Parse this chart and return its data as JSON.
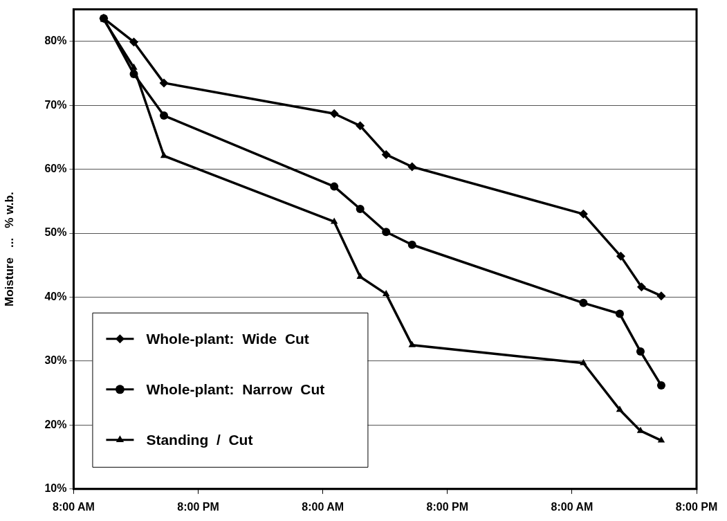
{
  "chart_data": {
    "type": "line",
    "ylabel": "Moisture   ...   % w.b.",
    "xlim": [
      "2000-01-01T08:00",
      "2000-01-03T20:00"
    ],
    "xticks": [
      {
        "value": "2000-01-01T08:00",
        "label": "8:00 AM"
      },
      {
        "value": "2000-01-01T20:00",
        "label": "8:00 PM"
      },
      {
        "value": "2000-01-02T08:00",
        "label": "8:00 AM"
      },
      {
        "value": "2000-01-02T20:00",
        "label": "8:00 PM"
      },
      {
        "value": "2000-01-03T08:00",
        "label": "8:00 AM"
      },
      {
        "value": "2000-01-03T20:00",
        "label": "8:00 PM"
      }
    ],
    "ylim": [
      10,
      85
    ],
    "yticks": [
      {
        "value": 10,
        "label": "10%"
      },
      {
        "value": 20,
        "label": "20%"
      },
      {
        "value": 30,
        "label": "30%"
      },
      {
        "value": 40,
        "label": "40%"
      },
      {
        "value": 50,
        "label": "50%"
      },
      {
        "value": 60,
        "label": "60%"
      },
      {
        "value": 70,
        "label": "70%"
      },
      {
        "value": 80,
        "label": "80%"
      }
    ],
    "grid": "y",
    "legend": "bottom left",
    "line_style": "solid",
    "series": [
      {
        "name": "Whole-plant:  Wide  Cut",
        "color": "#000000",
        "marker": "diamond",
        "x": [
          "2000-01-01T10:54",
          "2000-01-01T13:48",
          "2000-01-01T16:42",
          "2000-01-02T09:06",
          "2000-01-02T11:36",
          "2000-01-02T14:06",
          "2000-01-02T16:36",
          "2000-01-03T09:06",
          "2000-01-03T12:42",
          "2000-01-03T14:42",
          "2000-01-03T16:36"
        ],
        "values": [
          83.6,
          79.9,
          73.5,
          68.7,
          66.8,
          62.3,
          60.4,
          53.0,
          46.4,
          41.6,
          40.2
        ]
      },
      {
        "name": "Whole-plant:  Narrow  Cut",
        "color": "#000000",
        "marker": "circle",
        "x": [
          "2000-01-01T10:54",
          "2000-01-01T13:48",
          "2000-01-01T16:42",
          "2000-01-02T09:06",
          "2000-01-02T11:36",
          "2000-01-02T14:06",
          "2000-01-02T16:36",
          "2000-01-03T09:06",
          "2000-01-03T12:36",
          "2000-01-03T14:36",
          "2000-01-03T16:36"
        ],
        "values": [
          83.6,
          74.9,
          68.4,
          57.3,
          53.8,
          50.2,
          48.2,
          39.1,
          37.4,
          31.5,
          26.2
        ]
      },
      {
        "name": "Standing  /  Cut",
        "color": "#000000",
        "marker": "triangle",
        "x": [
          "2000-01-01T10:54",
          "2000-01-01T13:48",
          "2000-01-01T16:42",
          "2000-01-02T09:06",
          "2000-01-02T11:36",
          "2000-01-02T14:06",
          "2000-01-02T16:36",
          "2000-01-03T09:06",
          "2000-01-03T12:36",
          "2000-01-03T14:36",
          "2000-01-03T16:36"
        ],
        "values": [
          83.4,
          75.9,
          62.1,
          51.8,
          43.2,
          40.5,
          32.5,
          29.7,
          22.4,
          19.1,
          17.6
        ]
      }
    ]
  }
}
